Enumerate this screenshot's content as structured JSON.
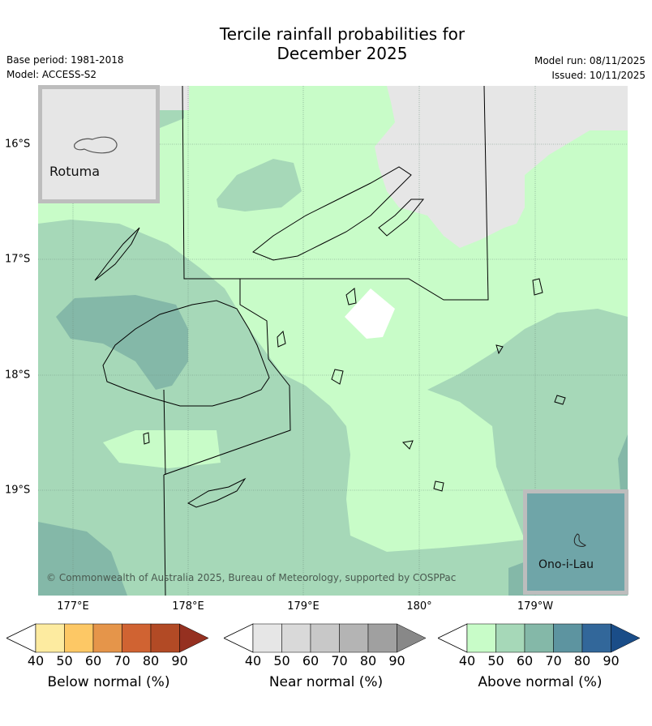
{
  "title_line1": "Tercile rainfall probabilities for",
  "title_line2": "December 2025",
  "base_period": "Base period: 1981-2018",
  "model": "Model: ACCESS-S2",
  "model_run": "Model run: 08/11/2025",
  "issued": "Issued: 10/11/2025",
  "lon_labels": [
    "177°E",
    "178°E",
    "179°E",
    "180°",
    "179°W"
  ],
  "lat_labels": [
    "16°S",
    "17°S",
    "18°S",
    "19°S"
  ],
  "inset_rotuma": "Rotuma",
  "inset_onoilau": "Ono-i-Lau",
  "copyright": "© Commonwealth of Australia 2025, Bureau of Meteorology, supported by COSPPac",
  "legends": [
    {
      "title": "Below normal (%)",
      "ticks": [
        "40",
        "50",
        "60",
        "70",
        "80",
        "90"
      ],
      "colors": [
        "#fdeba0",
        "#fdc865",
        "#e5954a",
        "#d06332",
        "#b24a25",
        "#953020"
      ]
    },
    {
      "title": "Near normal (%)",
      "ticks": [
        "40",
        "50",
        "60",
        "70",
        "80",
        "90"
      ],
      "colors": [
        "#e6e6e6",
        "#d9d9d9",
        "#c8c8c8",
        "#b4b4b4",
        "#a0a0a0",
        "#888888"
      ]
    },
    {
      "title": "Above normal (%)",
      "ticks": [
        "40",
        "50",
        "60",
        "70",
        "80",
        "90"
      ],
      "colors": [
        "#c8fcc8",
        "#a6d8b8",
        "#84b8a8",
        "#5d94a0",
        "#32679a",
        "#1a4d88"
      ]
    }
  ]
}
